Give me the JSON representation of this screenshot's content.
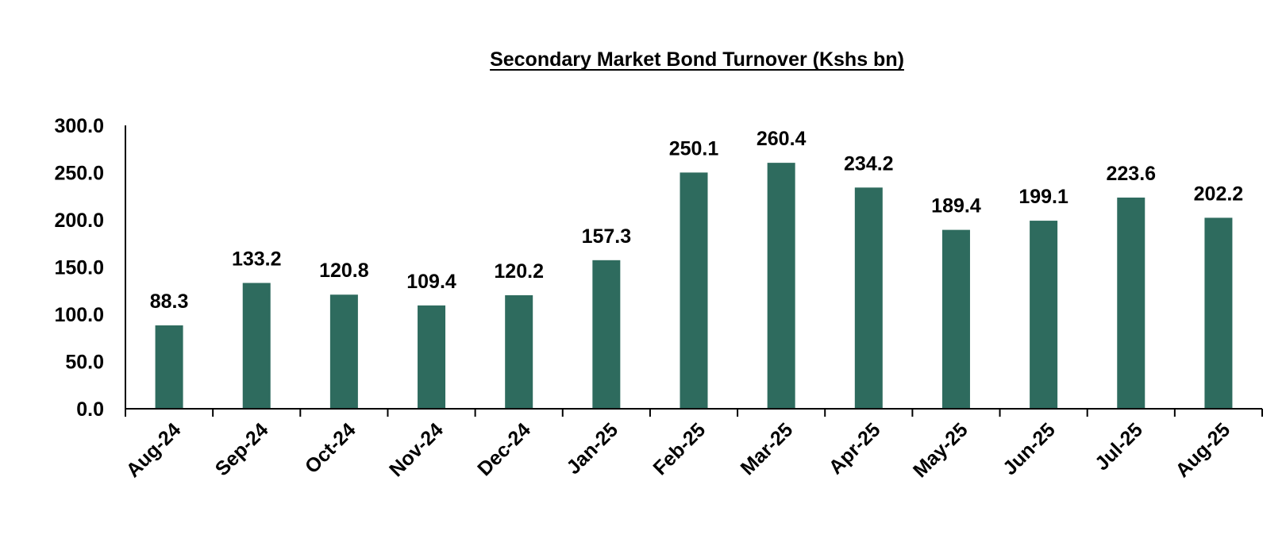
{
  "chart_data": {
    "type": "bar",
    "title": "Secondary Market Bond Turnover (Kshs bn)",
    "xlabel": "",
    "ylabel": "",
    "categories": [
      "Aug-24",
      "Sep-24",
      "Oct-24",
      "Nov-24",
      "Dec-24",
      "Jan-25",
      "Feb-25",
      "Mar-25",
      "Apr-25",
      "May-25",
      "Jun-25",
      "Jul-25",
      "Aug-25"
    ],
    "values": [
      88.3,
      133.2,
      120.8,
      109.4,
      120.2,
      157.3,
      250.1,
      260.4,
      234.2,
      189.4,
      199.1,
      223.6,
      202.2
    ],
    "data_labels": [
      "88.3",
      "133.2",
      "120.8",
      "109.4",
      "120.2",
      "157.3",
      "250.1",
      "260.4",
      "234.2",
      "189.4",
      "199.1",
      "223.6",
      "202.2"
    ],
    "ylim": [
      0,
      300
    ],
    "yticks": [
      0,
      50,
      100,
      150,
      200,
      250,
      300
    ],
    "ytick_labels": [
      "0.0",
      "50.0",
      "100.0",
      "150.0",
      "200.0",
      "250.0",
      "300.0"
    ],
    "grid": false,
    "legend": "none",
    "bar_color": "#2E6B5E"
  }
}
